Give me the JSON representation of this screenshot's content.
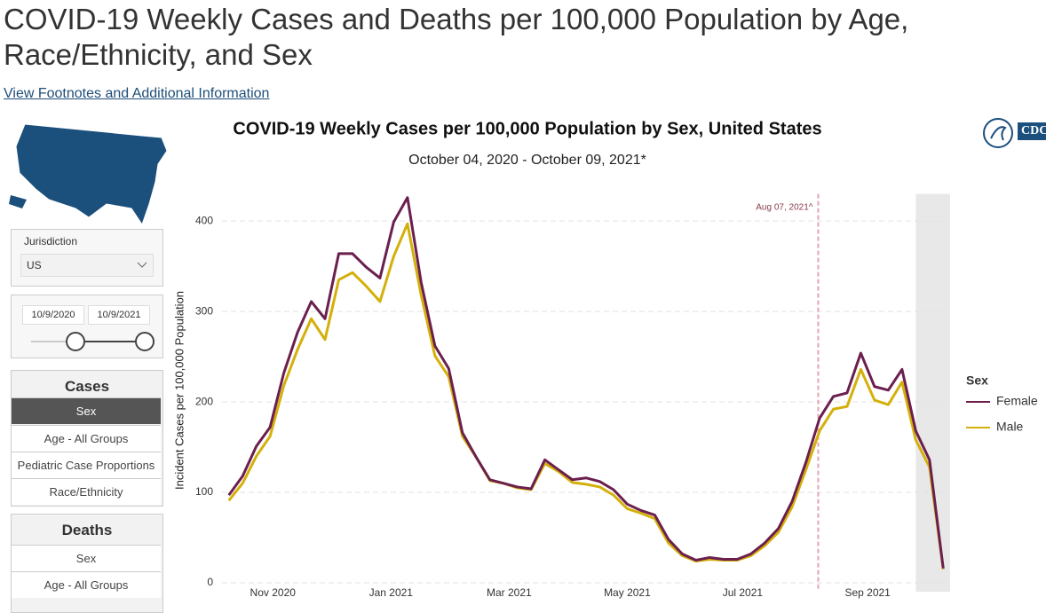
{
  "header": {
    "title_lines": [
      "COVID-19 Weekly Cases and Deaths per 100,000 Population by Age,",
      "Race/Ethnicity, and Sex"
    ],
    "link": "View Footnotes and Additional Information"
  },
  "sidebar": {
    "jurisdiction_label": "Jurisdiction",
    "jurisdiction_value": "US",
    "date_start": "10/9/2020",
    "date_end": "10/9/2021",
    "cases_heading": "Cases",
    "cases_buttons": [
      "Sex",
      "Age - All Groups",
      "Pediatric Case Proportions",
      "Race/Ethnicity"
    ],
    "deaths_heading": "Deaths",
    "deaths_buttons": [
      "Sex",
      "Age - All Groups"
    ]
  },
  "logo": "CDC",
  "chart_data": {
    "type": "line",
    "title": "COVID-19 Weekly Cases per 100,000 Population by Sex, United States",
    "subtitle": "October 04, 2020 - October 09, 2021*",
    "y_label": "Incident Cases per 100,000 Population",
    "legend_title": "Sex",
    "legend": "right",
    "x": [
      0,
      1,
      2,
      3,
      4,
      5,
      6,
      7,
      8,
      9,
      10,
      11,
      12,
      13,
      14,
      15,
      16,
      17,
      18,
      19,
      20,
      21,
      22,
      23,
      24,
      25,
      26,
      27,
      28,
      29,
      30,
      31,
      32,
      33,
      34,
      35,
      36,
      37,
      38,
      39,
      40,
      41,
      42,
      43,
      44,
      45,
      46,
      47,
      48,
      49,
      50,
      51,
      52
    ],
    "xlim": [
      -0.5,
      52.5
    ],
    "xticks": [
      {
        "value": 3.2,
        "label": "Nov 2020"
      },
      {
        "value": 11.8,
        "label": "Jan 2021"
      },
      {
        "value": 20.4,
        "label": "Mar 2021"
      },
      {
        "value": 29,
        "label": "May 2021"
      },
      {
        "value": 37.4,
        "label": "Jul 2021"
      },
      {
        "value": 46.5,
        "label": "Sep 2021"
      }
    ],
    "ylim": [
      0,
      430
    ],
    "yticks": [
      0,
      100,
      200,
      300,
      400
    ],
    "grid": true,
    "annotation": {
      "text": "Aug 07, 2021^",
      "x": 42.9
    },
    "shaded_region": [
      50,
      52.5
    ],
    "series": [
      {
        "name": "Female",
        "color": "#6b1f4e",
        "values": [
          97,
          118,
          151,
          172,
          232,
          277,
          311,
          292,
          364,
          364,
          349,
          337,
          399,
          426,
          332,
          262,
          237,
          166,
          139,
          114,
          110,
          106,
          104,
          136,
          125,
          114,
          116,
          112,
          103,
          87,
          80,
          75,
          48,
          32,
          25,
          28,
          26,
          26,
          32,
          44,
          60,
          90,
          133,
          182,
          206,
          210,
          254,
          217,
          213,
          236,
          168,
          136,
          16
        ]
      },
      {
        "name": "Male",
        "color": "#d4b00a",
        "values": [
          91,
          110,
          140,
          162,
          218,
          258,
          292,
          269,
          335,
          343,
          328,
          311,
          361,
          397,
          318,
          251,
          228,
          162,
          139,
          113,
          110,
          105,
          103,
          132,
          123,
          111,
          109,
          106,
          97,
          82,
          77,
          71,
          44,
          30,
          24,
          26,
          25,
          25,
          30,
          41,
          56,
          84,
          125,
          168,
          192,
          195,
          236,
          202,
          197,
          222,
          158,
          128,
          15
        ]
      }
    ]
  }
}
